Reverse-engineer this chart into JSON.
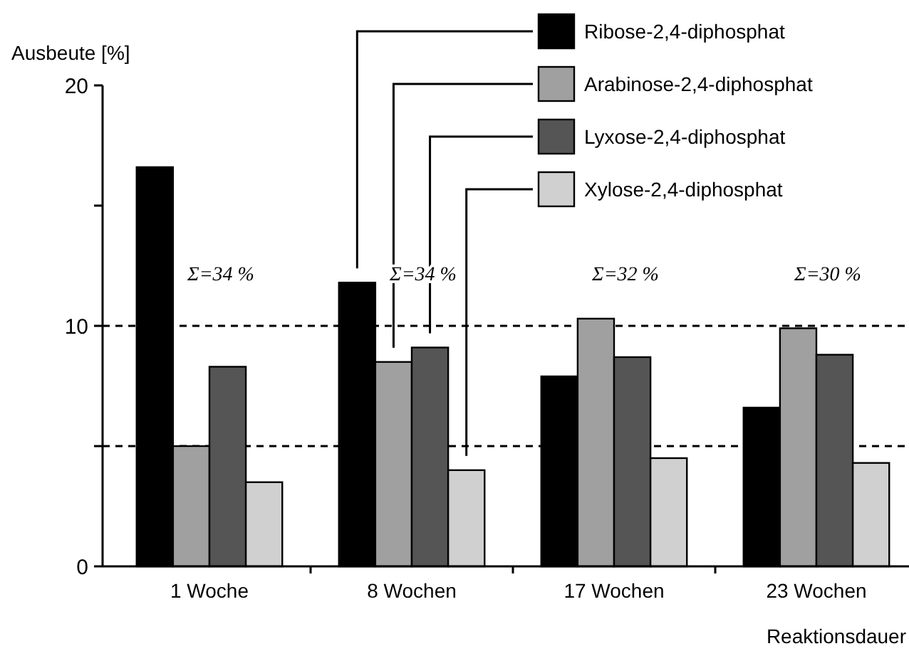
{
  "chart_data": {
    "type": "bar",
    "ylabel": "Ausbeute [%]",
    "xlabel": "Reaktionsdauer",
    "categories": [
      "1 Woche",
      "8 Wochen",
      "17 Wochen",
      "23 Wochen"
    ],
    "series": [
      {
        "name": "Ribose-2,4-diphosphat",
        "color": "#000000",
        "values": [
          16.6,
          11.8,
          7.9,
          6.6
        ]
      },
      {
        "name": "Arabinose-2,4-diphosphat",
        "color": "#a0a0a0",
        "values": [
          5.0,
          8.5,
          10.3,
          9.9
        ]
      },
      {
        "name": "Lyxose-2,4-diphosphat",
        "color": "#555555",
        "values": [
          8.3,
          9.1,
          8.7,
          8.8
        ]
      },
      {
        "name": "Xylose-2,4-diphosphat",
        "color": "#d0d0d0",
        "values": [
          3.5,
          4.0,
          4.5,
          4.3
        ]
      }
    ],
    "ylim": [
      0,
      20
    ],
    "yticks": [
      0,
      {
        "value": 5,
        "label": null
      },
      10,
      {
        "value": 15,
        "label": null
      },
      20
    ],
    "ref_lines": [
      {
        "axis": "y",
        "value": 10,
        "line_style": "dashed"
      },
      {
        "axis": "y",
        "value": 5,
        "line_style": "dashed"
      }
    ],
    "annotations": [
      "Σ=34 %",
      "Σ=34 %",
      "Σ=32 %",
      "Σ=30 %"
    ],
    "grid": false,
    "legend": "top right"
  }
}
